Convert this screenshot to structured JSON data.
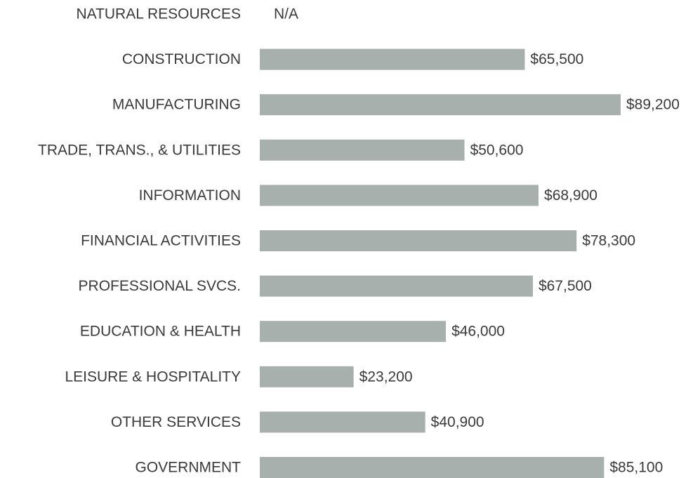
{
  "chart_data": {
    "type": "bar",
    "orientation": "horizontal",
    "color": "#a7b0ad",
    "categories": [
      "NATURAL RESOURCES",
      "CONSTRUCTION",
      "MANUFACTURING",
      "TRADE, TRANS., & UTILITIES",
      "INFORMATION",
      "FINANCIAL ACTIVITIES",
      "PROFESSIONAL SVCS.",
      "EDUCATION & HEALTH",
      "LEISURE & HOSPITALITY",
      "OTHER SERVICES",
      "GOVERNMENT"
    ],
    "values": [
      null,
      65500,
      89200,
      50600,
      68900,
      78300,
      67500,
      46000,
      23200,
      40900,
      85100
    ],
    "value_labels": [
      "N/A",
      "$65,500",
      "$89,200",
      "$50,600",
      "$68,900",
      "$78,300",
      "$67,500",
      "$46,000",
      "$23,200",
      "$40,900",
      "$85,100"
    ]
  }
}
